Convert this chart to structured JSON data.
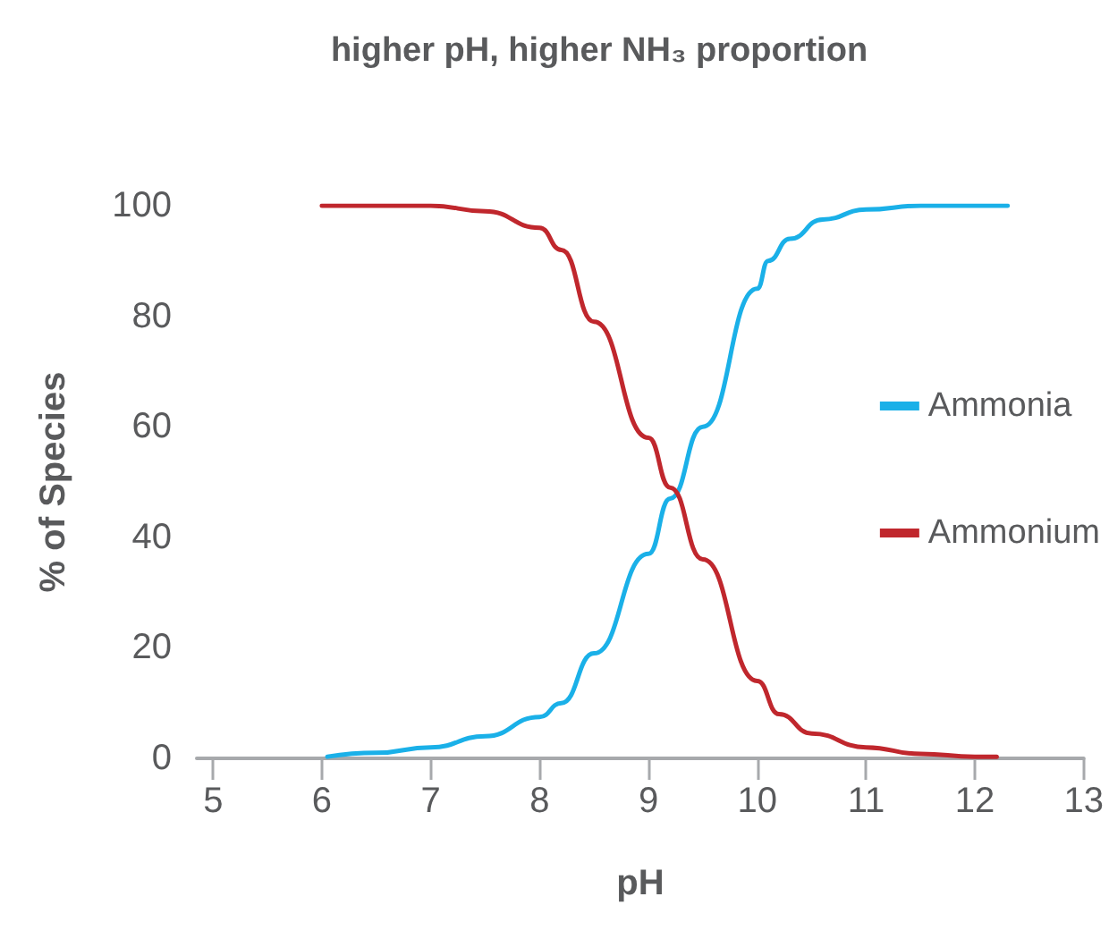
{
  "chart_data": {
    "type": "line",
    "title": "higher pH, higher NH₃ proportion",
    "xlabel": "pH",
    "ylabel": "% of Species",
    "xlim": [
      4.85,
      13
    ],
    "xticks": [
      5,
      6,
      7,
      8,
      9,
      10,
      11,
      12,
      13
    ],
    "ylim": [
      0,
      100
    ],
    "yticks": [
      0,
      20,
      40,
      60,
      80,
      100
    ],
    "grid": false,
    "legend": "right",
    "marker": "none",
    "line_style": "solid",
    "series": [
      {
        "name": "Ammonia",
        "color": "#1ab0e8",
        "x": [
          6.05,
          6.5,
          7,
          7.5,
          8,
          8.2,
          8.5,
          9,
          9.2,
          9.5,
          10,
          10.1,
          10.3,
          10.6,
          11,
          11.5,
          12.3
        ],
        "values": [
          0.3,
          1,
          2,
          4,
          7.5,
          10,
          19,
          37,
          47,
          60,
          85,
          90,
          94,
          97.5,
          99.3,
          100,
          100
        ]
      },
      {
        "name": "Ammonium",
        "color": "#c0272d",
        "x": [
          6,
          7,
          7.5,
          8,
          8.2,
          8.5,
          9,
          9.2,
          9.5,
          10,
          10.2,
          10.5,
          11,
          11.5,
          12,
          12.2
        ],
        "values": [
          100,
          100,
          99,
          96,
          92,
          79,
          58,
          49,
          36,
          14,
          8,
          4.5,
          2,
          0.8,
          0.3,
          0.3
        ]
      }
    ]
  }
}
